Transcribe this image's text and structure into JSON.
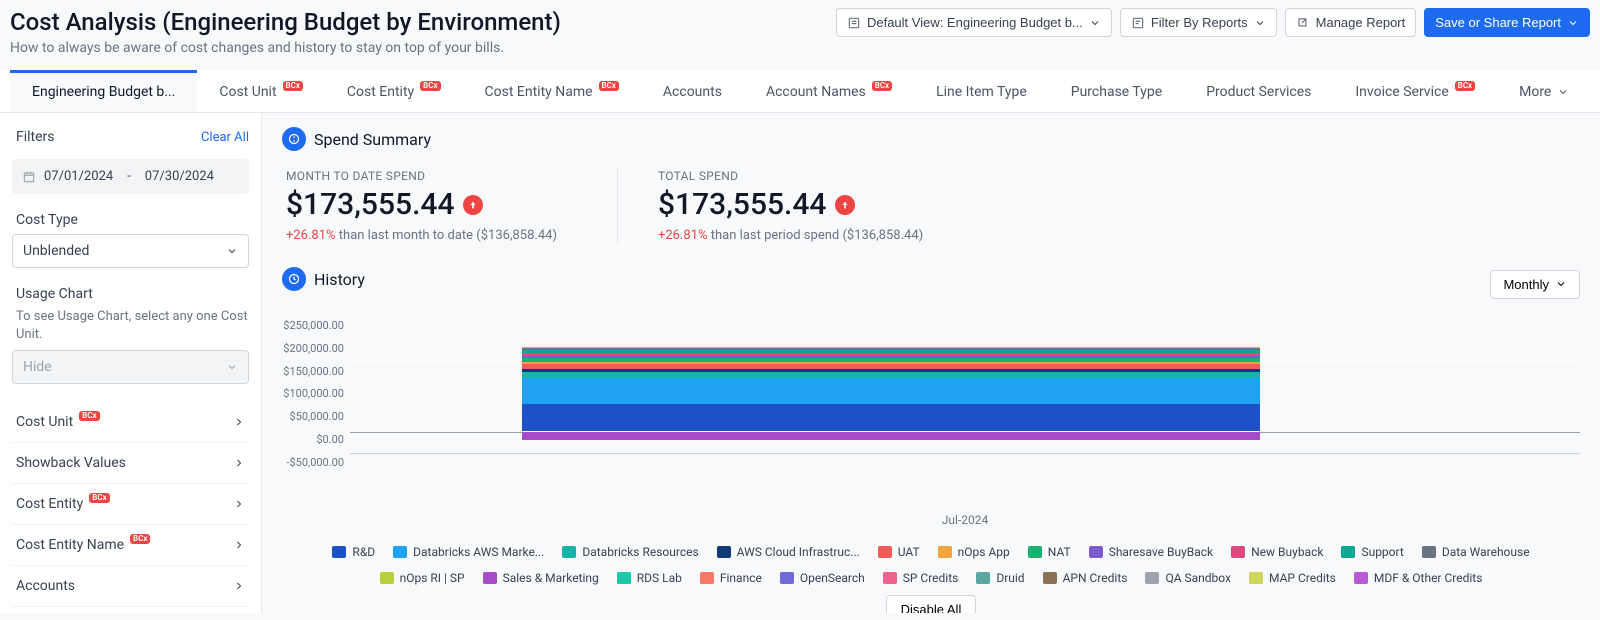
{
  "header": {
    "title": "Cost Analysis (Engineering Budget by Environment)",
    "subtitle": "How to always be aware of cost changes and history to stay on top of your bills.",
    "default_view": "Default View: Engineering Budget b...",
    "filter_reports": "Filter By Reports",
    "manage": "Manage Report",
    "save_share": "Save or Share Report"
  },
  "tabs": {
    "items": [
      {
        "label": "Engineering Budget b...",
        "new": false
      },
      {
        "label": "Cost Unit",
        "new": true
      },
      {
        "label": "Cost Entity",
        "new": true
      },
      {
        "label": "Cost Entity Name",
        "new": true
      },
      {
        "label": "Accounts",
        "new": false
      },
      {
        "label": "Account Names",
        "new": true
      },
      {
        "label": "Line Item Type",
        "new": false
      },
      {
        "label": "Purchase Type",
        "new": false
      },
      {
        "label": "Product Services",
        "new": false
      },
      {
        "label": "Invoice Service",
        "new": true
      },
      {
        "label": "More",
        "new": false
      }
    ],
    "badge_text": "BCx"
  },
  "sidebar": {
    "filters_label": "Filters",
    "clear_all": "Clear All",
    "date_start": "07/01/2024",
    "date_sep": "-",
    "date_end": "07/30/2024",
    "cost_type_label": "Cost Type",
    "cost_type_value": "Unblended",
    "usage_label": "Usage Chart",
    "usage_hint": "To see Usage Chart, select any one Cost Unit.",
    "usage_value": "Hide",
    "items": [
      {
        "label": "Cost Unit",
        "new": true
      },
      {
        "label": "Showback Values",
        "new": false
      },
      {
        "label": "Cost Entity",
        "new": true
      },
      {
        "label": "Cost Entity Name",
        "new": true
      },
      {
        "label": "Accounts",
        "new": false
      },
      {
        "label": "Account Names",
        "new": true
      }
    ]
  },
  "spend": {
    "title": "Spend Summary",
    "mtd_label": "MONTH TO DATE SPEND",
    "mtd_value": "$173,555.44",
    "mtd_pct": "+26.81%",
    "mtd_suffix": " than last month to date ($136,858.44)",
    "total_label": "TOTAL SPEND",
    "total_value": "$173,555.44",
    "total_pct": "+26.81%",
    "total_suffix": " than last period spend ($136,858.44)"
  },
  "history": {
    "title": "History",
    "granularity": "Monthly",
    "disable_all": "Disable All",
    "x_label": "Jul-2024",
    "y_ticks": [
      "$250,000.00",
      "$200,000.00",
      "$150,000.00",
      "$100,000.00",
      "$50,000.00",
      "$0.00",
      "-$50,000.00"
    ],
    "ylim": [
      -50000,
      250000
    ],
    "type": "stacked-bar",
    "bar": {
      "positive": [
        {
          "color": "#1e50c8",
          "value": 62000
        },
        {
          "color": "#1fa2f0",
          "value": 62000
        },
        {
          "color": "#17b3a8",
          "value": 12000
        },
        {
          "color": "#0f3b7a",
          "value": 8000
        },
        {
          "color": "#f55b5b",
          "value": 11000
        },
        {
          "color": "#f0a33a",
          "value": 6000
        },
        {
          "color": "#18b36a",
          "value": 8000
        },
        {
          "color": "#7a5cce",
          "value": 6000
        },
        {
          "color": "#e0467f",
          "value": 7000
        },
        {
          "color": "#0aa88f",
          "value": 6000
        },
        {
          "color": "#6b7280",
          "value": 4000
        },
        {
          "color": "#b7cf3a",
          "value": 4000
        }
      ],
      "negative": [
        {
          "color": "#a64cc9",
          "value": 18000
        }
      ]
    },
    "legend": [
      {
        "label": "R&D",
        "color": "#1e50c8"
      },
      {
        "label": "Databricks AWS Marke...",
        "color": "#1fa2f0"
      },
      {
        "label": "Databricks Resources",
        "color": "#17b3a8"
      },
      {
        "label": "AWS Cloud Infrastruc...",
        "color": "#0f3b7a"
      },
      {
        "label": "UAT",
        "color": "#f55b5b"
      },
      {
        "label": "nOps App",
        "color": "#f0a33a"
      },
      {
        "label": "NAT",
        "color": "#18b36a"
      },
      {
        "label": "Sharesave BuyBack",
        "color": "#7a5cce"
      },
      {
        "label": "New Buyback",
        "color": "#e0467f"
      },
      {
        "label": "Support",
        "color": "#0aa88f"
      },
      {
        "label": "Data Warehouse",
        "color": "#6b7280"
      },
      {
        "label": "nOps RI | SP",
        "color": "#b7cf3a"
      },
      {
        "label": "Sales  & Marketing",
        "color": "#a64cc9"
      },
      {
        "label": "RDS Lab",
        "color": "#1cc6a8"
      },
      {
        "label": "Finance",
        "color": "#f97865"
      },
      {
        "label": "OpenSearch",
        "color": "#6e6bd8"
      },
      {
        "label": "SP Credits",
        "color": "#f0628e"
      },
      {
        "label": "Druid",
        "color": "#5ba8a0"
      },
      {
        "label": "APN Credits",
        "color": "#8a7355"
      },
      {
        "label": "QA Sandbox",
        "color": "#9ca3af"
      },
      {
        "label": "MAP Credits",
        "color": "#cbd65a"
      },
      {
        "label": "MDF & Other Credits",
        "color": "#b85ad6"
      }
    ]
  },
  "colors": {
    "primary": "#1e6bef",
    "danger": "#ef4444",
    "text": "#111827",
    "muted": "#6b7280",
    "border": "#e5e7eb"
  }
}
